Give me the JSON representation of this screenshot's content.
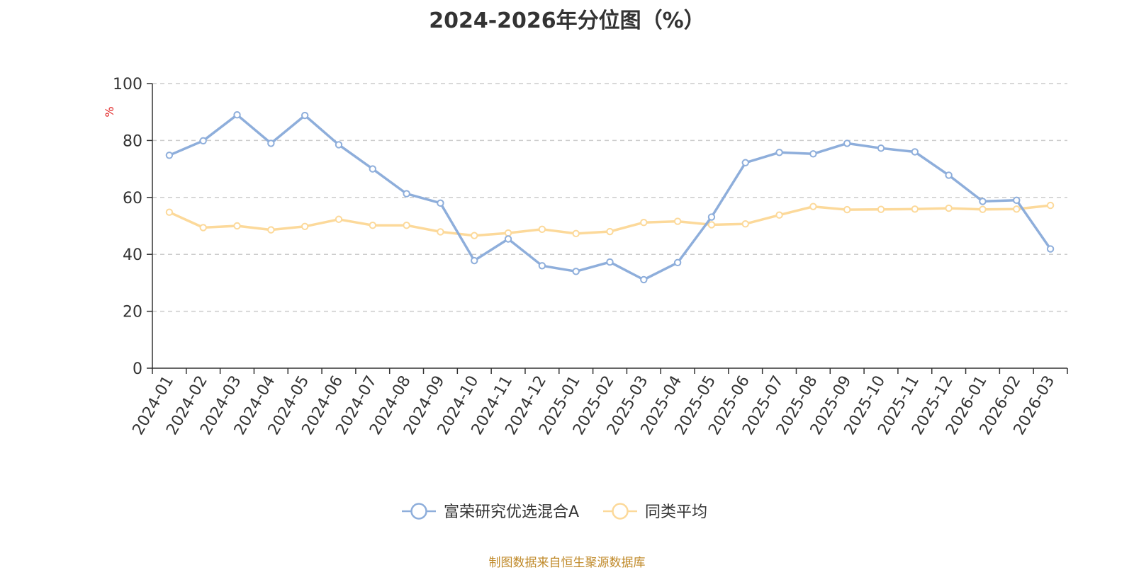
{
  "chart_data": {
    "type": "line",
    "title": "2024-2026年分位图（%）",
    "ylabel": "%",
    "ylim": [
      0,
      100
    ],
    "yticks": [
      0,
      20,
      40,
      60,
      80,
      100
    ],
    "grid": "horizontal dashed",
    "legend_position": "bottom-center",
    "categories": [
      "2024-01",
      "2024-02",
      "2024-03",
      "2024-04",
      "2024-05",
      "2024-06",
      "2024-07",
      "2024-08",
      "2024-09",
      "2024-10",
      "2024-11",
      "2024-12",
      "2025-01",
      "2025-02",
      "2025-03",
      "2025-04",
      "2025-05",
      "2025-06",
      "2025-07",
      "2025-08",
      "2025-09",
      "2025-10",
      "2025-11",
      "2025-12",
      "2026-01",
      "2026-02",
      "2026-03"
    ],
    "series": [
      {
        "name": "富荣研究优选混合A",
        "color": "#8eaedb",
        "values": [
          74.8,
          79.9,
          89.0,
          79.0,
          88.8,
          78.5,
          70.0,
          61.3,
          58.0,
          37.8,
          45.4,
          36.0,
          34.0,
          37.3,
          31.1,
          37.1,
          53.1,
          72.2,
          75.8,
          75.3,
          79.0,
          77.3,
          76.0,
          67.8,
          58.6,
          59.0,
          41.9
        ]
      },
      {
        "name": "同类平均",
        "color": "#fcd99a",
        "values": [
          54.8,
          49.4,
          50.0,
          48.6,
          49.8,
          52.3,
          50.2,
          50.2,
          47.9,
          46.6,
          47.5,
          48.8,
          47.3,
          48.0,
          51.2,
          51.6,
          50.4,
          50.7,
          53.8,
          56.8,
          55.7,
          55.8,
          55.9,
          56.2,
          55.8,
          55.9,
          57.2
        ]
      }
    ]
  },
  "footer": {
    "source": "制图数据来自恒生聚源数据库"
  }
}
